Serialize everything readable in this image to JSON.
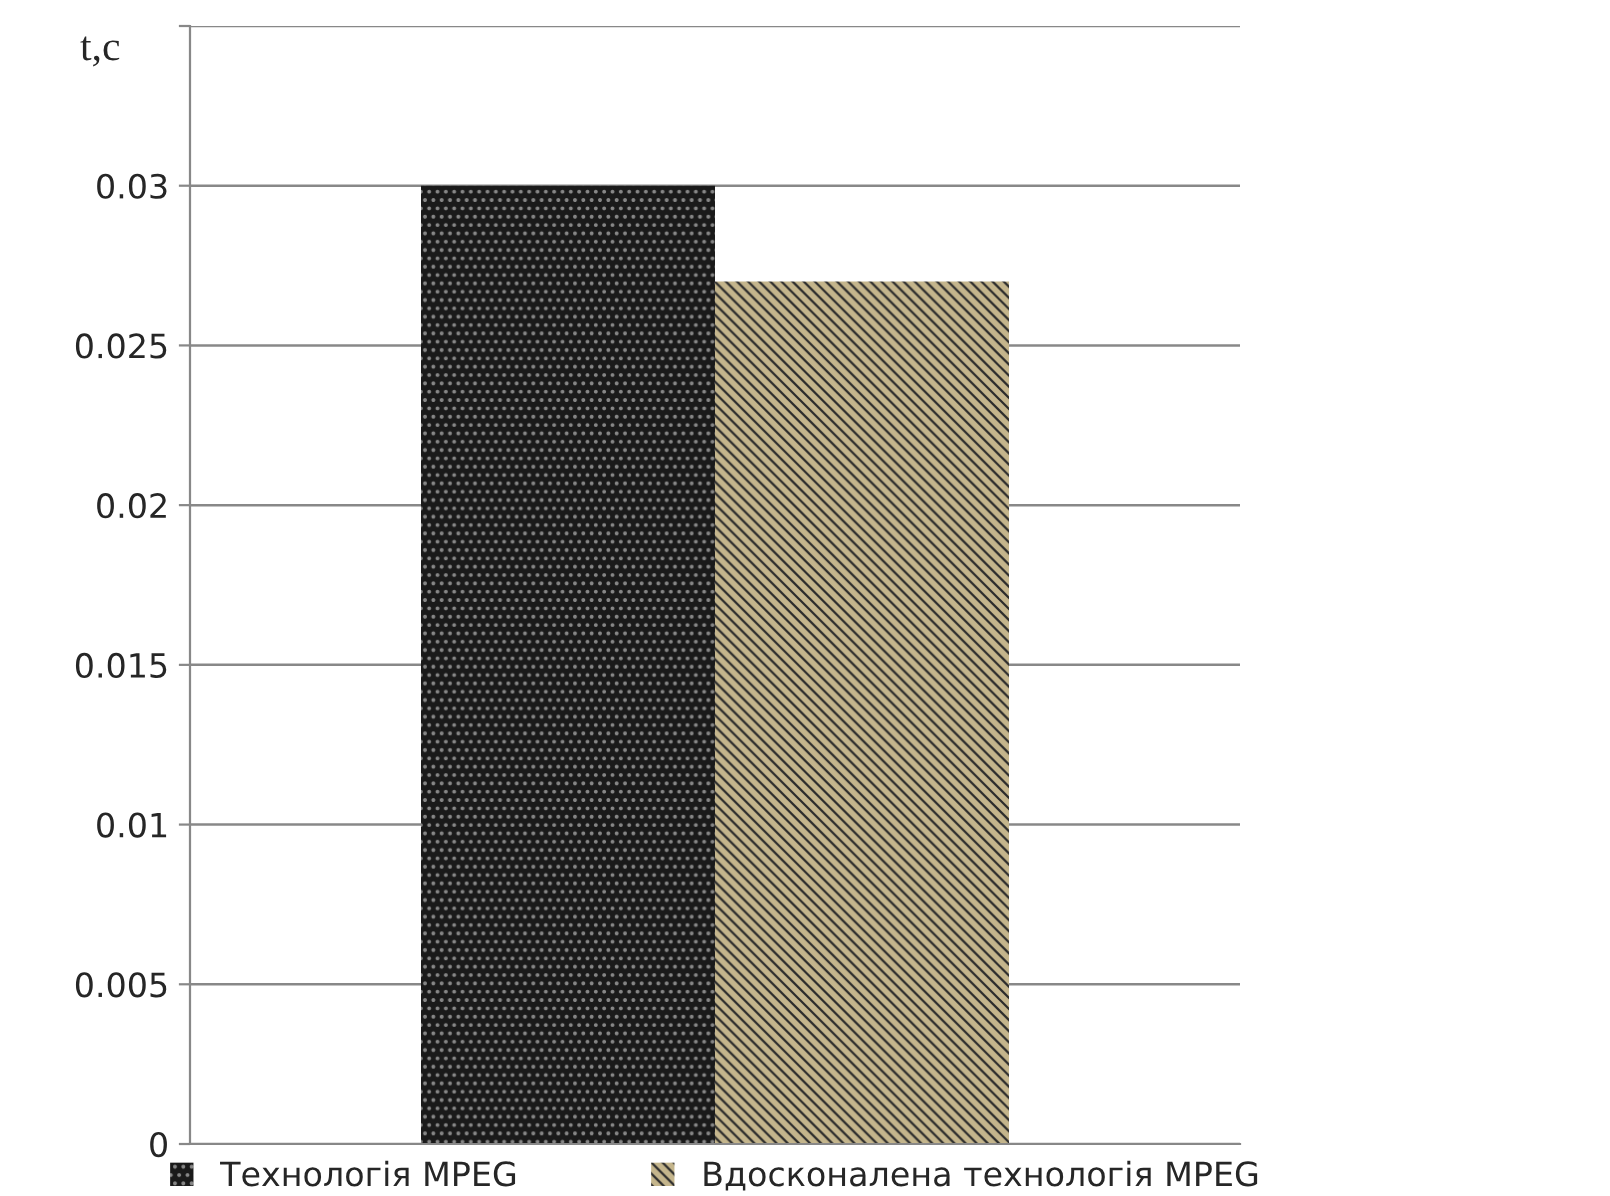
{
  "chart_data": {
    "type": "bar",
    "ylabel": "t,c",
    "categories": [
      null
    ],
    "series": [
      {
        "name": "Технологія MPEG",
        "color": "#1a1a1a",
        "values": [
          0.03
        ]
      },
      {
        "name": "Вдосконалена технологія MPEG",
        "color": "#c4b58c",
        "values": [
          0.027
        ]
      }
    ],
    "ylim": [
      0,
      0.035
    ],
    "yticks": [
      0,
      0.005,
      0.01,
      0.015,
      0.02,
      0.025,
      0.03,
      {
        "value": 0.035,
        "label": null
      }
    ],
    "grid": "y",
    "legend": "bottom"
  }
}
